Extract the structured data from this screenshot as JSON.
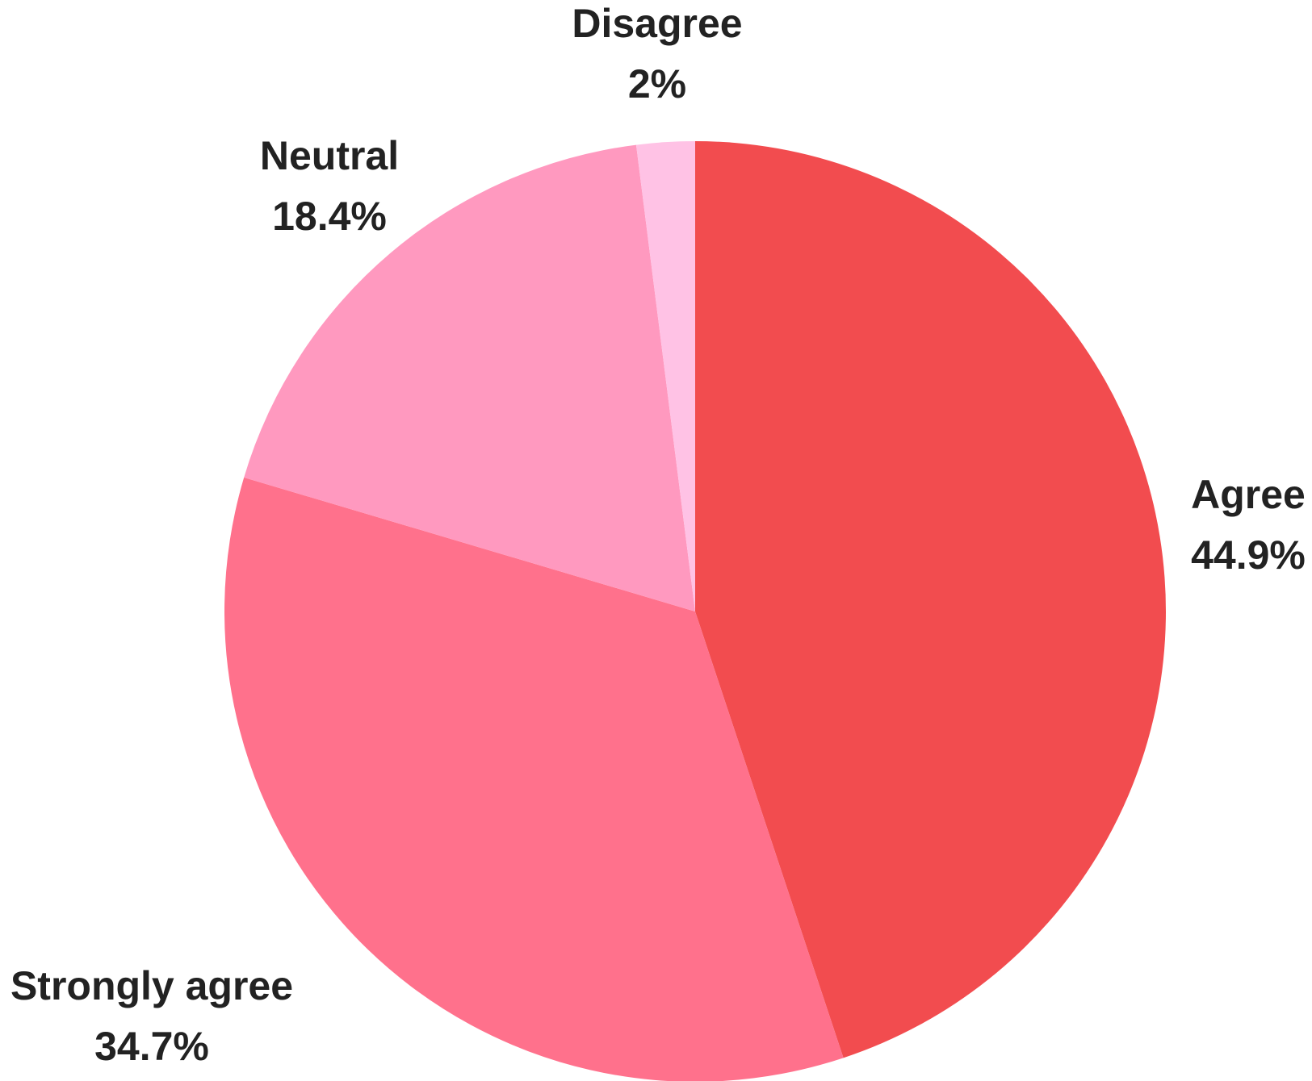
{
  "chart_data": {
    "type": "pie",
    "start_angle_deg": 0,
    "direction": "clockwise",
    "slices": [
      {
        "label": "Agree",
        "value": 44.9,
        "value_label": "44.9%",
        "color": "#F24C4F"
      },
      {
        "label": "Strongly agree",
        "value": 34.7,
        "value_label": "34.7%",
        "color": "#FF718C"
      },
      {
        "label": "Neutral",
        "value": 18.4,
        "value_label": "18.4%",
        "color": "#FF99BF"
      },
      {
        "label": "Disagree",
        "value": 2,
        "value_label": "2%",
        "color": "#FFC2E5"
      }
    ]
  }
}
